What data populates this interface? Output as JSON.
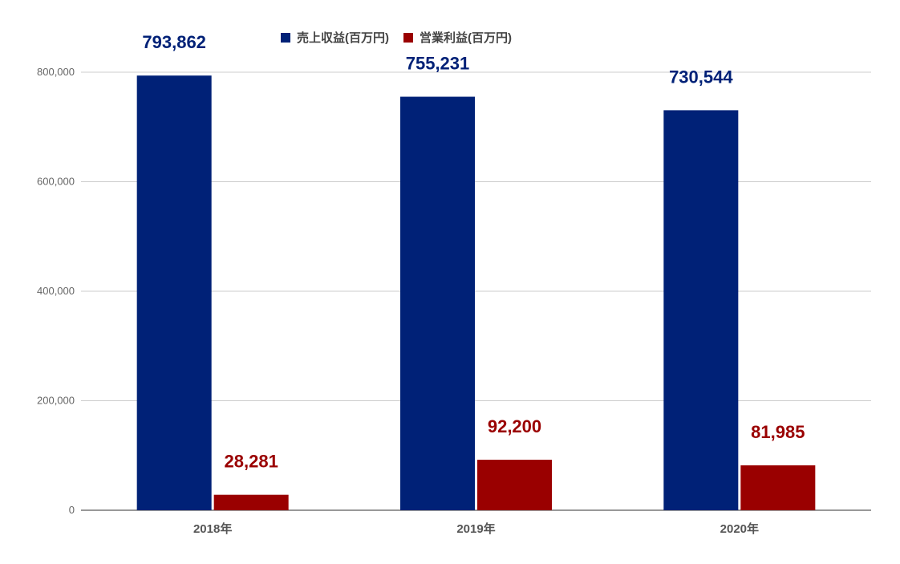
{
  "chart_data": {
    "type": "bar",
    "categories": [
      "2018年",
      "2019年",
      "2020年"
    ],
    "series": [
      {
        "name": "売上収益(百万円)",
        "color": "#002177",
        "values": [
          793862,
          755231,
          730544
        ],
        "labels": [
          "793,862",
          "755,231",
          "730,544"
        ]
      },
      {
        "name": "営業利益(百万円)",
        "color": "#9a0000",
        "values": [
          28281,
          92200,
          81985
        ],
        "labels": [
          "28,281",
          "92,200",
          "81,985"
        ]
      }
    ],
    "ylim": [
      0,
      800000
    ],
    "yticks": [
      "0",
      "200,000",
      "400,000",
      "600,000",
      "800,000"
    ],
    "grid": true,
    "legend_position": "top"
  }
}
